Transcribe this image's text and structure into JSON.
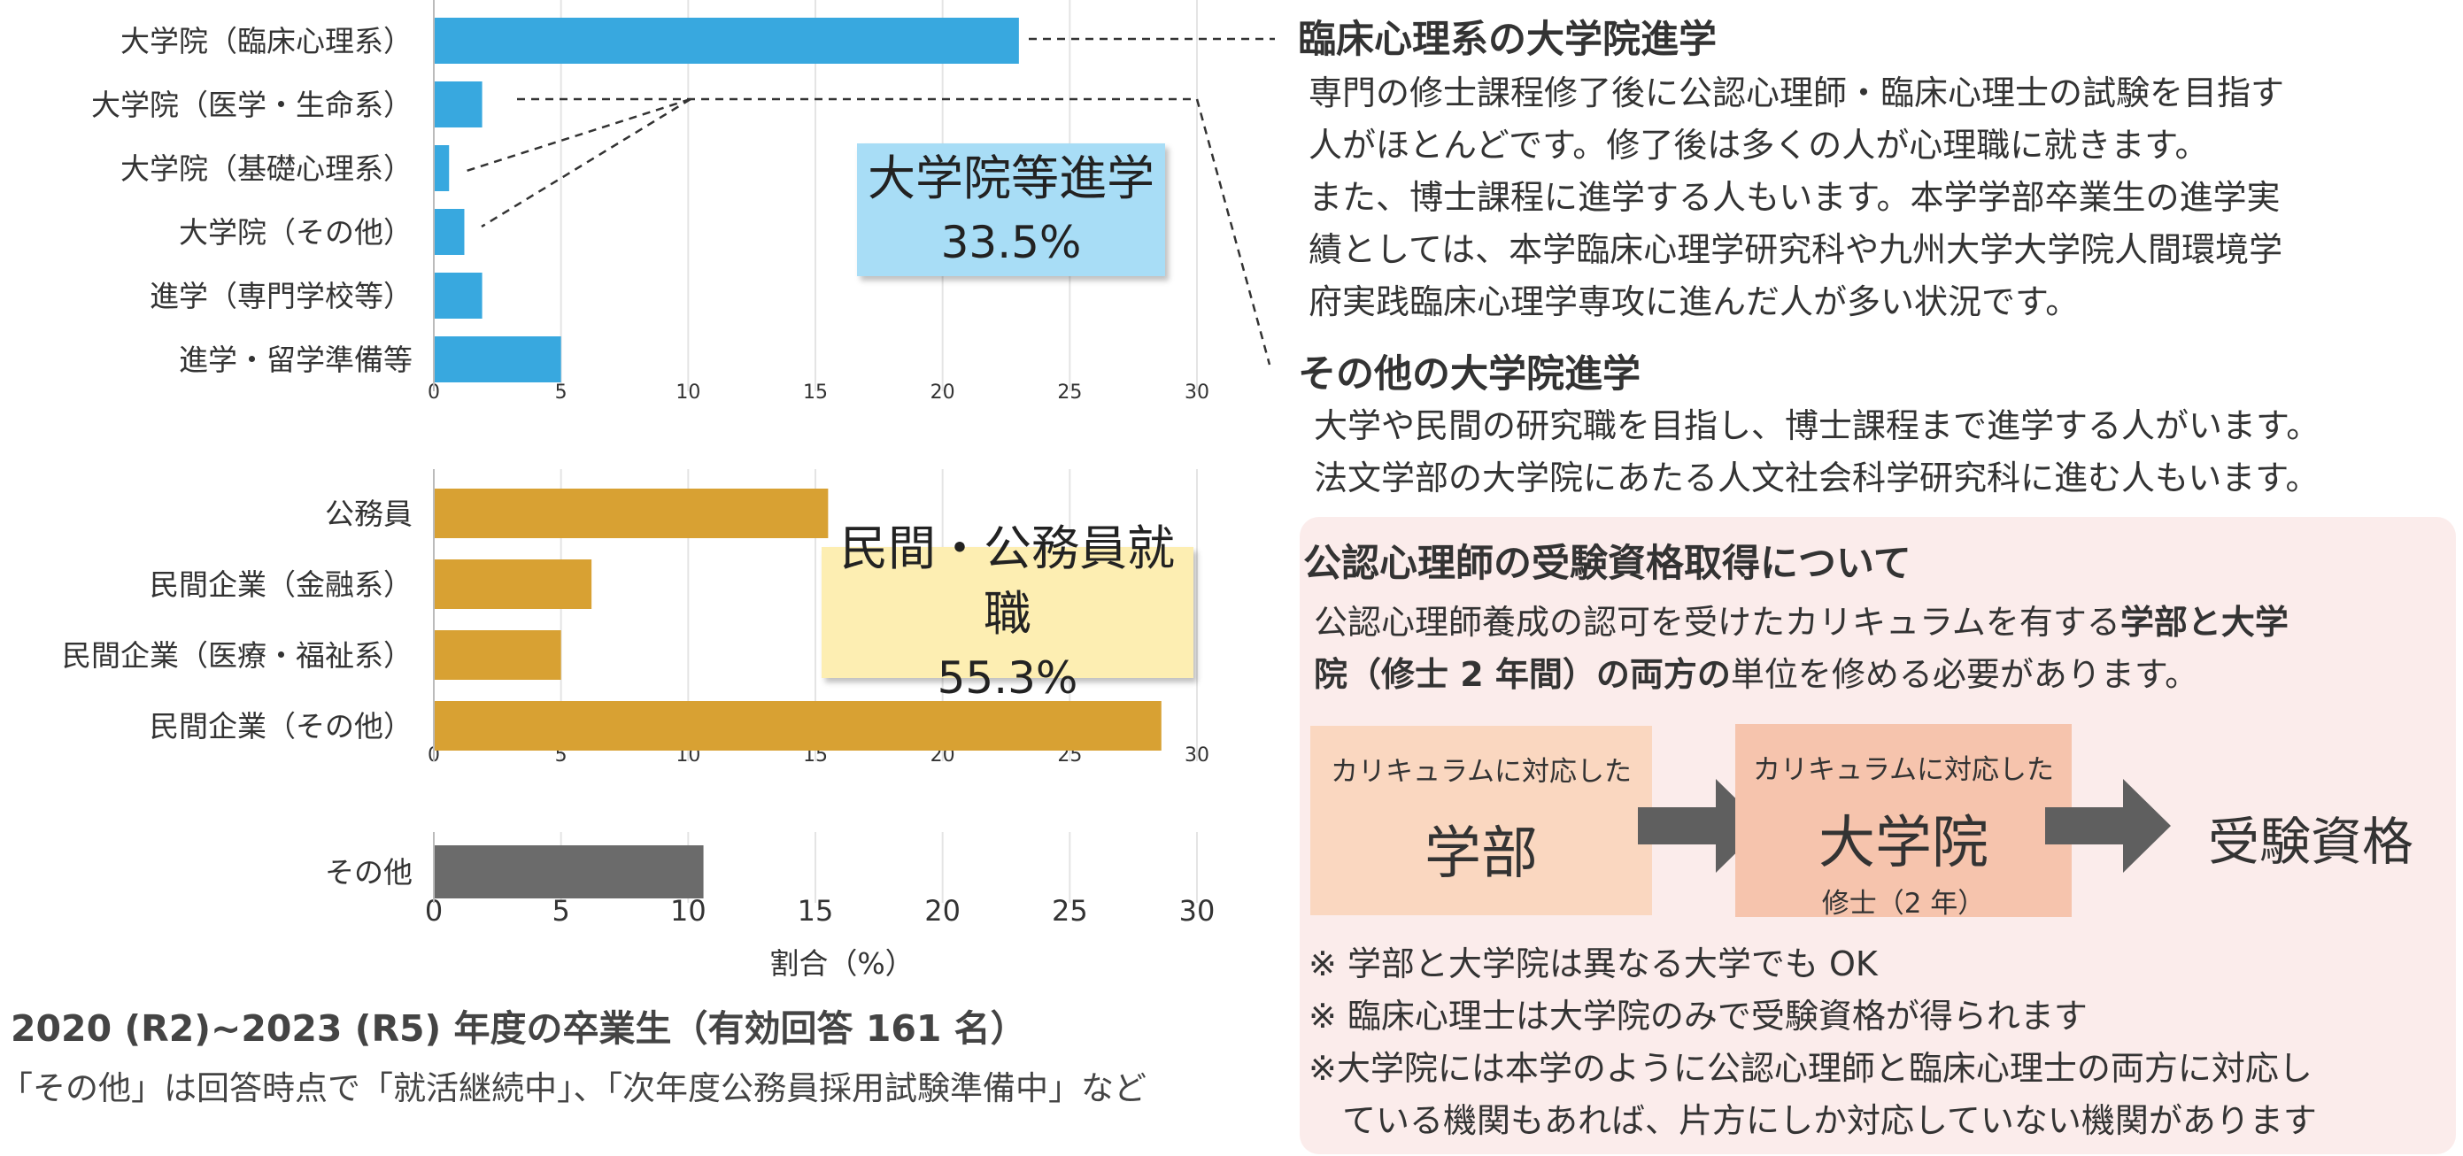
{
  "chart_data": [
    {
      "type": "bar",
      "orientation": "horizontal",
      "categories": [
        "大学院（臨床心理系）",
        "大学院（医学・生命系）",
        "大学院（基礎心理系）",
        "大学院（その他）",
        "進学（専門学校等）",
        "進学・留学準備等"
      ],
      "values": [
        23.0,
        1.9,
        0.6,
        1.2,
        1.9,
        5.0
      ],
      "color": "#38a8df",
      "xlim": [
        0,
        30
      ],
      "xticks": [
        "0",
        "5",
        "10",
        "15",
        "20",
        "25",
        "30"
      ],
      "grid": true,
      "label_title": "大学院等進学",
      "label_value": "33.5%",
      "label_color": "#a8ddf6"
    },
    {
      "type": "bar",
      "orientation": "horizontal",
      "categories": [
        "公務員",
        "民間企業（金融系）",
        "民間企業（医療・福祉系）",
        "民間企業（その他）"
      ],
      "values": [
        15.5,
        6.2,
        5.0,
        28.6
      ],
      "color": "#d8a133",
      "xlim": [
        0,
        30
      ],
      "xticks": [
        "0",
        "5",
        "10",
        "15",
        "20",
        "25",
        "30"
      ],
      "grid": true,
      "label_title": "民間・公務員就職",
      "label_value": "55.3%",
      "label_color": "#fdeeb2"
    },
    {
      "type": "bar",
      "orientation": "horizontal",
      "categories": [
        "その他"
      ],
      "values": [
        10.6
      ],
      "color": "#6b6b6b",
      "xlim": [
        0,
        30
      ],
      "xticks": [
        "0",
        "5",
        "10",
        "15",
        "20",
        "25",
        "30"
      ],
      "grid": true,
      "xlabel": "割合（%）"
    }
  ],
  "footer": {
    "title": "2020 (R2)~2023 (R5) 年度の卒業生（有効回答 161 名）",
    "note": "「その他」は回答時点で「就活継続中」、「次年度公務員採用試験準備中」など"
  },
  "sections": {
    "clinical": {
      "heading": "臨床心理系の大学院進学",
      "lines": [
        "専門の修士課程修了後に公認心理師・臨床心理士の試験を目指す",
        "人がほとんどです。修了後は多くの人が心理職に就きます。",
        "また、博士課程に進学する人もいます。本学学部卒業生の進学実",
        "績としては、本学臨床心理学研究科や九州大学大学院人間環境学",
        "府実践臨床心理学専攻に進んだ人が多い状況です。"
      ]
    },
    "other": {
      "heading": "その他の大学院進学",
      "lines": [
        "大学や民間の研究職を目指し、博士課程まで進学する人がいます。",
        "法文学部の大学院にあたる人文社会科学研究科に進む人もいます。"
      ]
    }
  },
  "requirements": {
    "heading": "公認心理師の受験資格取得について",
    "line1_a": "公認心理師養成の認可を受けたカリキュラムを有する",
    "line1_b": "学部と大学",
    "line2_a": "院（修士 2 年間）の両方の",
    "line2_b": "単位を修める必要があります。",
    "flow": {
      "step1_caption": "カリキュラムに対応した",
      "step1_title": "学部",
      "step2_caption": "カリキュラムに対応した",
      "step2_title": "大学院",
      "step2_sub": "修士（2 年）",
      "result": "受験資格"
    },
    "notes": [
      "※ 学部と大学院は異なる大学でも OK",
      "※ 臨床心理士は大学院のみで受験資格が得られます",
      "※大学院には本学のように公認心理師と臨床心理士の両方に対応し",
      "　ている機関もあれば、片方にしか対応していない機関があります"
    ]
  },
  "colors": {
    "arrow": "#5f5f5f",
    "step1_bg": "#fad7c0",
    "step2_bg": "#f6c4ad",
    "panel_bg": "#fbeceb"
  }
}
